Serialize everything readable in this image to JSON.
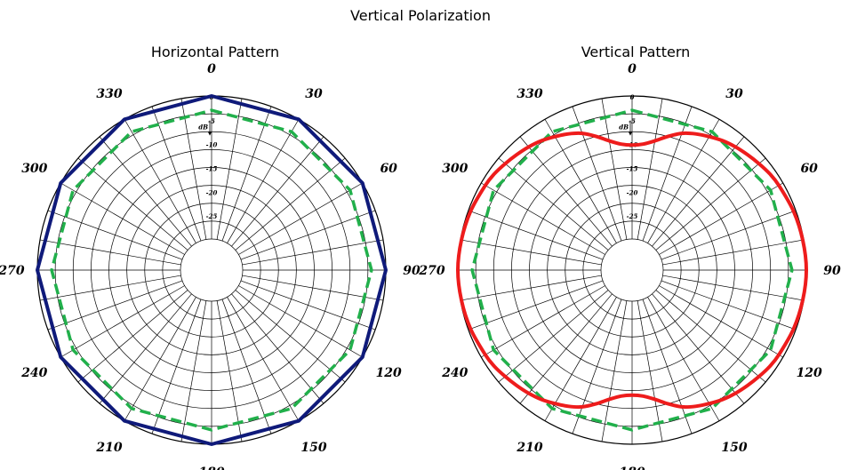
{
  "page": {
    "title": "Vertical Polarization"
  },
  "colors": {
    "measured_horizontal": "#0f1a7a",
    "measured_vertical": "#ee1c1c",
    "reference": "#21b04b",
    "grid": "#000000"
  },
  "chart_data": [
    {
      "type": "polar-line",
      "title": "Horizontal Pattern",
      "angle_labels": [
        "0",
        "30",
        "60",
        "90",
        "120",
        "150",
        "180",
        "210",
        "240",
        "270",
        "300",
        "330"
      ],
      "radial_labels": [
        "0",
        "-5",
        "-10",
        "-15",
        "-20",
        "-25"
      ],
      "radial_unit": "dB",
      "r_range": [
        -30,
        0
      ],
      "series": [
        {
          "role": "pattern",
          "color": "#0f1a7a",
          "style": "solid",
          "theta": [
            0,
            30,
            60,
            90,
            120,
            150,
            180,
            210,
            240,
            270,
            300,
            330,
            360
          ],
          "r": [
            0,
            0,
            0,
            0,
            0,
            0,
            0,
            0,
            0,
            0,
            0,
            0,
            0
          ]
        },
        {
          "role": "reference",
          "color": "#21b04b",
          "style": "dashed",
          "theta": [
            0,
            30,
            60,
            90,
            120,
            150,
            180,
            210,
            240,
            270,
            300,
            330,
            360
          ],
          "r": [
            -3,
            -3,
            -3,
            -3,
            -3,
            -3,
            -3,
            -3,
            -3,
            -3,
            -3,
            -3,
            -3
          ]
        }
      ]
    },
    {
      "type": "polar-line",
      "title": "Vertical Pattern",
      "angle_labels": [
        "0",
        "30",
        "60",
        "90",
        "120",
        "150",
        "180",
        "210",
        "240",
        "270",
        "300",
        "330"
      ],
      "radial_labels": [
        "0",
        "-5",
        "-10",
        "-15",
        "-20",
        "-25"
      ],
      "radial_unit": "dB",
      "r_range": [
        -30,
        0
      ],
      "series": [
        {
          "role": "pattern",
          "color": "#ee1c1c",
          "style": "solid",
          "theta": [
            0,
            5,
            10,
            15,
            20,
            25,
            30,
            35,
            40,
            45,
            50,
            55,
            60,
            70,
            80,
            90,
            100,
            110,
            120,
            125,
            130,
            135,
            140,
            145,
            150,
            155,
            160,
            165,
            170,
            175,
            180,
            185,
            190,
            195,
            200,
            205,
            210,
            215,
            220,
            225,
            230,
            235,
            240,
            250,
            260,
            270,
            280,
            290,
            300,
            305,
            310,
            315,
            320,
            325,
            330,
            335,
            340,
            345,
            350,
            355,
            360
          ],
          "r": [
            -10.3,
            -10.0,
            -9.0,
            -7.5,
            -6.0,
            -5.0,
            -4.2,
            -3.4,
            -2.8,
            -2.3,
            -1.8,
            -1.3,
            -1.0,
            -0.5,
            -0.2,
            0.0,
            -0.2,
            -0.5,
            -1.0,
            -1.3,
            -1.8,
            -2.3,
            -2.8,
            -3.4,
            -4.2,
            -5.0,
            -6.0,
            -7.5,
            -9.0,
            -10.0,
            -10.3,
            -10.0,
            -9.0,
            -7.5,
            -6.0,
            -5.0,
            -4.2,
            -3.4,
            -2.8,
            -2.3,
            -1.8,
            -1.3,
            -1.0,
            -0.5,
            -0.2,
            0.0,
            -0.2,
            -0.5,
            -1.0,
            -1.3,
            -1.8,
            -2.3,
            -2.8,
            -3.4,
            -4.2,
            -5.0,
            -6.0,
            -7.5,
            -9.0,
            -10.0,
            -10.3
          ]
        },
        {
          "role": "reference",
          "color": "#21b04b",
          "style": "dashed",
          "theta": [
            0,
            30,
            60,
            90,
            120,
            150,
            180,
            210,
            240,
            270,
            300,
            330,
            360
          ],
          "r": [
            -3,
            -3,
            -3,
            -3,
            -3,
            -3,
            -3,
            -3,
            -3,
            -3,
            -3,
            -3,
            -3
          ]
        }
      ]
    }
  ]
}
